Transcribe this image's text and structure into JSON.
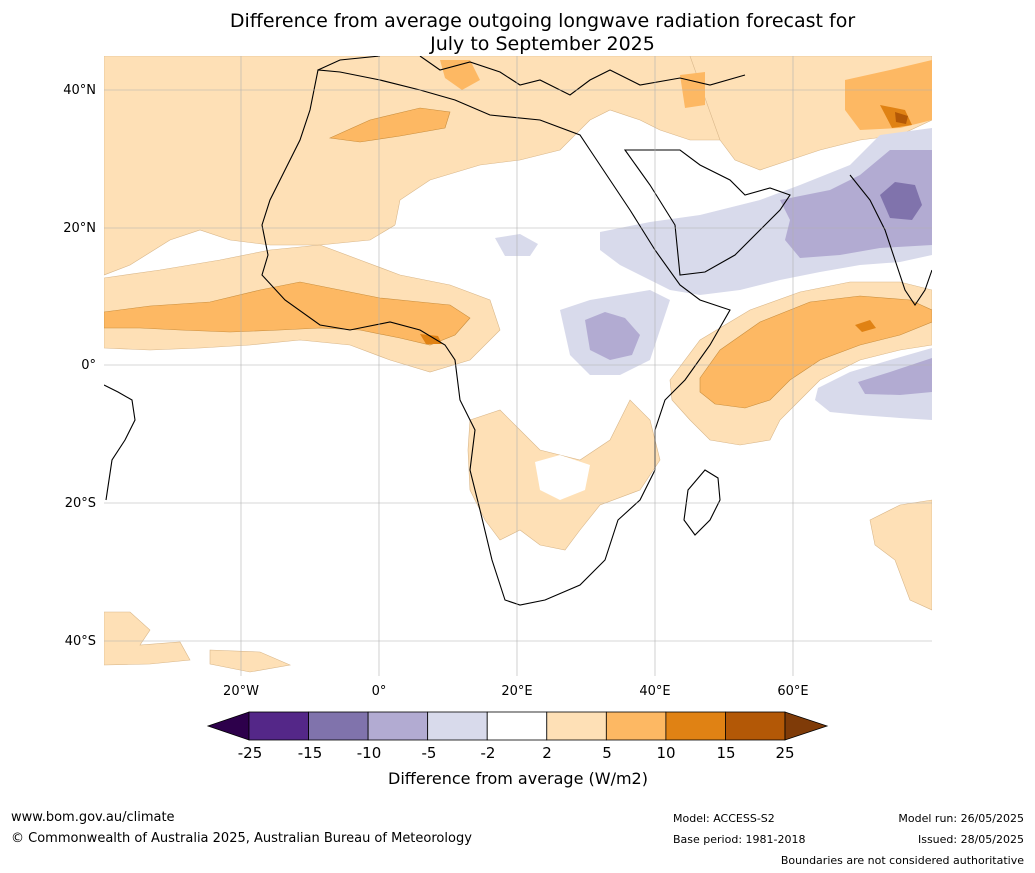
{
  "title": {
    "line1": "Difference from average outgoing longwave radiation forecast for",
    "line2": "July to September 2025"
  },
  "map": {
    "lat_labels": [
      "40°N",
      "20°N",
      "0°",
      "20°S",
      "40°S"
    ],
    "lon_labels": [
      "20°W",
      "0°",
      "20°E",
      "40°E",
      "60°E"
    ],
    "extent": {
      "lon": [
        -40,
        80
      ],
      "lat": [
        -45,
        45
      ]
    },
    "gridlines": true
  },
  "colorbar": {
    "label": "Difference from average (W/m2)",
    "ticks": [
      "-25",
      "-15",
      "-10",
      "-5",
      "-2",
      "2",
      "5",
      "10",
      "15",
      "25"
    ],
    "colors": {
      "below": "#2d004b",
      "bins": [
        "#542788",
        "#8073ac",
        "#b2abd2",
        "#d8daeb",
        "#ffffff",
        "#fee0b6",
        "#fdb863",
        "#e08214",
        "#b35806"
      ],
      "above": "#7f3b08"
    }
  },
  "footer": {
    "website": "www.bom.gov.au/climate",
    "copyright": "© Commonwealth of Australia 2025, Australian Bureau of Meteorology",
    "model": "Model: ACCESS-S2",
    "base_period": "Base period: 1981-2018",
    "model_run": "Model run: 26/05/2025",
    "issued": "Issued: 28/05/2025",
    "disclaimer": "Boundaries are not considered authoritative"
  }
}
